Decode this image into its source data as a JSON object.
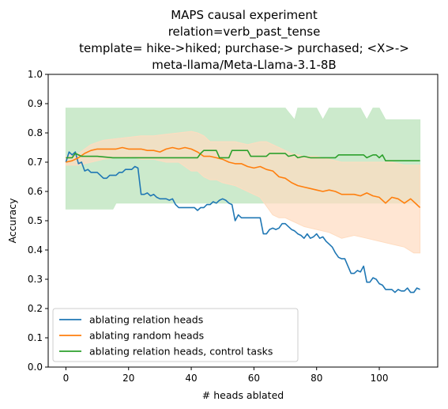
{
  "chart_data": {
    "type": "line",
    "title_lines": [
      "MAPS causal experiment",
      "relation=verb_past_tense",
      "template= hike->hiked; purchase-> purchased; <X>->",
      "meta-llama/Meta-Llama-3.1-8B"
    ],
    "xlabel": "# heads ablated",
    "ylabel": "Accuracy",
    "xlim": [
      -5.65,
      118.65
    ],
    "ylim": [
      0,
      1
    ],
    "x_ticks": [
      0,
      20,
      40,
      60,
      80,
      100
    ],
    "y_ticks": [
      0.0,
      0.1,
      0.2,
      0.3,
      0.4,
      0.5,
      0.6,
      0.7,
      0.8,
      0.9,
      1.0
    ],
    "grid": false,
    "legend_position": "lower-left",
    "series": [
      {
        "name": "ablating relation heads",
        "color": "#1f77b4",
        "points": [
          [
            0,
            0.7
          ],
          [
            1,
            0.735
          ],
          [
            2,
            0.725
          ],
          [
            3,
            0.735
          ],
          [
            4,
            0.695
          ],
          [
            5,
            0.7
          ],
          [
            6,
            0.67
          ],
          [
            7,
            0.675
          ],
          [
            8,
            0.665
          ],
          [
            9,
            0.665
          ],
          [
            10,
            0.665
          ],
          [
            11,
            0.655
          ],
          [
            12,
            0.645
          ],
          [
            13,
            0.645
          ],
          [
            14,
            0.655
          ],
          [
            15,
            0.655
          ],
          [
            16,
            0.655
          ],
          [
            17,
            0.665
          ],
          [
            18,
            0.665
          ],
          [
            19,
            0.675
          ],
          [
            20,
            0.675
          ],
          [
            21,
            0.675
          ],
          [
            22,
            0.685
          ],
          [
            23,
            0.68
          ],
          [
            24,
            0.59
          ],
          [
            25,
            0.59
          ],
          [
            26,
            0.595
          ],
          [
            27,
            0.585
          ],
          [
            28,
            0.59
          ],
          [
            29,
            0.58
          ],
          [
            30,
            0.575
          ],
          [
            31,
            0.575
          ],
          [
            32,
            0.575
          ],
          [
            33,
            0.57
          ],
          [
            34,
            0.575
          ],
          [
            35,
            0.555
          ],
          [
            36,
            0.545
          ],
          [
            37,
            0.545
          ],
          [
            38,
            0.545
          ],
          [
            39,
            0.545
          ],
          [
            40,
            0.545
          ],
          [
            41,
            0.545
          ],
          [
            42,
            0.535
          ],
          [
            43,
            0.545
          ],
          [
            44,
            0.545
          ],
          [
            45,
            0.555
          ],
          [
            46,
            0.555
          ],
          [
            47,
            0.565
          ],
          [
            48,
            0.56
          ],
          [
            49,
            0.57
          ],
          [
            50,
            0.575
          ],
          [
            51,
            0.57
          ],
          [
            52,
            0.56
          ],
          [
            53,
            0.555
          ],
          [
            54,
            0.5
          ],
          [
            55,
            0.52
          ],
          [
            56,
            0.51
          ],
          [
            57,
            0.51
          ],
          [
            58,
            0.51
          ],
          [
            59,
            0.51
          ],
          [
            60,
            0.51
          ],
          [
            61,
            0.51
          ],
          [
            62,
            0.51
          ],
          [
            63,
            0.455
          ],
          [
            64,
            0.455
          ],
          [
            65,
            0.47
          ],
          [
            66,
            0.475
          ],
          [
            67,
            0.47
          ],
          [
            68,
            0.475
          ],
          [
            69,
            0.49
          ],
          [
            70,
            0.49
          ],
          [
            71,
            0.48
          ],
          [
            72,
            0.47
          ],
          [
            73,
            0.465
          ],
          [
            74,
            0.455
          ],
          [
            75,
            0.45
          ],
          [
            76,
            0.44
          ],
          [
            77,
            0.455
          ],
          [
            78,
            0.44
          ],
          [
            79,
            0.445
          ],
          [
            80,
            0.455
          ],
          [
            81,
            0.44
          ],
          [
            82,
            0.445
          ],
          [
            83,
            0.43
          ],
          [
            84,
            0.42
          ],
          [
            85,
            0.41
          ],
          [
            86,
            0.39
          ],
          [
            87,
            0.375
          ],
          [
            88,
            0.37
          ],
          [
            89,
            0.37
          ],
          [
            90,
            0.345
          ],
          [
            91,
            0.32
          ],
          [
            92,
            0.32
          ],
          [
            93,
            0.33
          ],
          [
            94,
            0.325
          ],
          [
            95,
            0.345
          ],
          [
            96,
            0.29
          ],
          [
            97,
            0.29
          ],
          [
            98,
            0.305
          ],
          [
            99,
            0.3
          ],
          [
            100,
            0.285
          ],
          [
            101,
            0.28
          ],
          [
            102,
            0.265
          ],
          [
            103,
            0.265
          ],
          [
            104,
            0.265
          ],
          [
            105,
            0.255
          ],
          [
            106,
            0.265
          ],
          [
            107,
            0.26
          ],
          [
            108,
            0.26
          ],
          [
            109,
            0.27
          ],
          [
            110,
            0.255
          ],
          [
            111,
            0.255
          ],
          [
            112,
            0.27
          ],
          [
            113,
            0.265
          ]
        ]
      },
      {
        "name": "ablating random heads",
        "color": "#ff7f0e",
        "band_color": "#ffdcc0",
        "points": [
          [
            0,
            0.7
          ],
          [
            2,
            0.705
          ],
          [
            4,
            0.715
          ],
          [
            6,
            0.73
          ],
          [
            8,
            0.74
          ],
          [
            10,
            0.745
          ],
          [
            12,
            0.745
          ],
          [
            14,
            0.745
          ],
          [
            16,
            0.745
          ],
          [
            18,
            0.75
          ],
          [
            20,
            0.745
          ],
          [
            22,
            0.745
          ],
          [
            24,
            0.745
          ],
          [
            26,
            0.74
          ],
          [
            28,
            0.74
          ],
          [
            30,
            0.735
          ],
          [
            32,
            0.745
          ],
          [
            34,
            0.75
          ],
          [
            36,
            0.745
          ],
          [
            38,
            0.75
          ],
          [
            40,
            0.745
          ],
          [
            42,
            0.735
          ],
          [
            44,
            0.72
          ],
          [
            46,
            0.72
          ],
          [
            48,
            0.715
          ],
          [
            50,
            0.71
          ],
          [
            52,
            0.7
          ],
          [
            54,
            0.695
          ],
          [
            56,
            0.695
          ],
          [
            58,
            0.685
          ],
          [
            60,
            0.68
          ],
          [
            62,
            0.685
          ],
          [
            64,
            0.675
          ],
          [
            66,
            0.67
          ],
          [
            68,
            0.65
          ],
          [
            70,
            0.645
          ],
          [
            72,
            0.63
          ],
          [
            74,
            0.62
          ],
          [
            76,
            0.615
          ],
          [
            78,
            0.61
          ],
          [
            80,
            0.605
          ],
          [
            82,
            0.6
          ],
          [
            84,
            0.605
          ],
          [
            86,
            0.6
          ],
          [
            88,
            0.59
          ],
          [
            90,
            0.59
          ],
          [
            92,
            0.59
          ],
          [
            94,
            0.585
          ],
          [
            96,
            0.595
          ],
          [
            98,
            0.585
          ],
          [
            100,
            0.58
          ],
          [
            102,
            0.56
          ],
          [
            104,
            0.58
          ],
          [
            106,
            0.575
          ],
          [
            108,
            0.56
          ],
          [
            110,
            0.575
          ],
          [
            112,
            0.555
          ],
          [
            113,
            0.545
          ]
        ],
        "band": [
          [
            0,
            0.69,
            0.72
          ],
          [
            4,
            0.69,
            0.73
          ],
          [
            8,
            0.7,
            0.76
          ],
          [
            12,
            0.71,
            0.775
          ],
          [
            16,
            0.715,
            0.78
          ],
          [
            20,
            0.72,
            0.785
          ],
          [
            24,
            0.71,
            0.79
          ],
          [
            28,
            0.71,
            0.79
          ],
          [
            32,
            0.7,
            0.795
          ],
          [
            36,
            0.7,
            0.8
          ],
          [
            40,
            0.67,
            0.805
          ],
          [
            42,
            0.67,
            0.8
          ],
          [
            44,
            0.65,
            0.79
          ],
          [
            46,
            0.64,
            0.77
          ],
          [
            48,
            0.64,
            0.77
          ],
          [
            50,
            0.63,
            0.77
          ],
          [
            54,
            0.62,
            0.77
          ],
          [
            58,
            0.6,
            0.76
          ],
          [
            62,
            0.58,
            0.77
          ],
          [
            64,
            0.55,
            0.77
          ],
          [
            66,
            0.52,
            0.76
          ],
          [
            68,
            0.51,
            0.75
          ],
          [
            70,
            0.51,
            0.74
          ],
          [
            72,
            0.5,
            0.73
          ],
          [
            76,
            0.48,
            0.72
          ],
          [
            80,
            0.47,
            0.72
          ],
          [
            84,
            0.46,
            0.71
          ],
          [
            88,
            0.44,
            0.7
          ],
          [
            92,
            0.45,
            0.7
          ],
          [
            96,
            0.44,
            0.7
          ],
          [
            100,
            0.43,
            0.7
          ],
          [
            104,
            0.42,
            0.7
          ],
          [
            108,
            0.41,
            0.69
          ],
          [
            111,
            0.39,
            0.69
          ],
          [
            113,
            0.39,
            0.69
          ]
        ]
      },
      {
        "name": "ablating relation heads, control tasks",
        "color": "#2ca02c",
        "band_color": "#c9e9c9",
        "points": [
          [
            0,
            0.715
          ],
          [
            2,
            0.715
          ],
          [
            3,
            0.73
          ],
          [
            5,
            0.72
          ],
          [
            10,
            0.72
          ],
          [
            15,
            0.715
          ],
          [
            20,
            0.715
          ],
          [
            25,
            0.715
          ],
          [
            30,
            0.715
          ],
          [
            35,
            0.715
          ],
          [
            40,
            0.715
          ],
          [
            42,
            0.715
          ],
          [
            43,
            0.73
          ],
          [
            44,
            0.74
          ],
          [
            48,
            0.74
          ],
          [
            49,
            0.715
          ],
          [
            52,
            0.715
          ],
          [
            53,
            0.74
          ],
          [
            58,
            0.74
          ],
          [
            59,
            0.72
          ],
          [
            62,
            0.72
          ],
          [
            64,
            0.72
          ],
          [
            65,
            0.73
          ],
          [
            70,
            0.73
          ],
          [
            71,
            0.72
          ],
          [
            73,
            0.725
          ],
          [
            74,
            0.715
          ],
          [
            76,
            0.72
          ],
          [
            78,
            0.715
          ],
          [
            86,
            0.715
          ],
          [
            87,
            0.725
          ],
          [
            95,
            0.725
          ],
          [
            96,
            0.715
          ],
          [
            98,
            0.725
          ],
          [
            99,
            0.725
          ],
          [
            100,
            0.715
          ],
          [
            101,
            0.725
          ],
          [
            102,
            0.705
          ],
          [
            106,
            0.705
          ],
          [
            107,
            0.705
          ],
          [
            112,
            0.705
          ],
          [
            113,
            0.705
          ]
        ],
        "band": [
          [
            0,
            0.54,
            0.885
          ],
          [
            15,
            0.54,
            0.885
          ],
          [
            16,
            0.56,
            0.885
          ],
          [
            70,
            0.56,
            0.885
          ],
          [
            73,
            0.56,
            0.845
          ],
          [
            74,
            0.56,
            0.885
          ],
          [
            80,
            0.56,
            0.885
          ],
          [
            82,
            0.56,
            0.845
          ],
          [
            84,
            0.56,
            0.885
          ],
          [
            94,
            0.56,
            0.885
          ],
          [
            96,
            0.56,
            0.845
          ],
          [
            98,
            0.56,
            0.885
          ],
          [
            100,
            0.56,
            0.885
          ],
          [
            102,
            0.56,
            0.845
          ],
          [
            111,
            0.56,
            0.845
          ],
          [
            112,
            0.56,
            0.845
          ],
          [
            113,
            0.56,
            0.845
          ]
        ]
      }
    ]
  }
}
